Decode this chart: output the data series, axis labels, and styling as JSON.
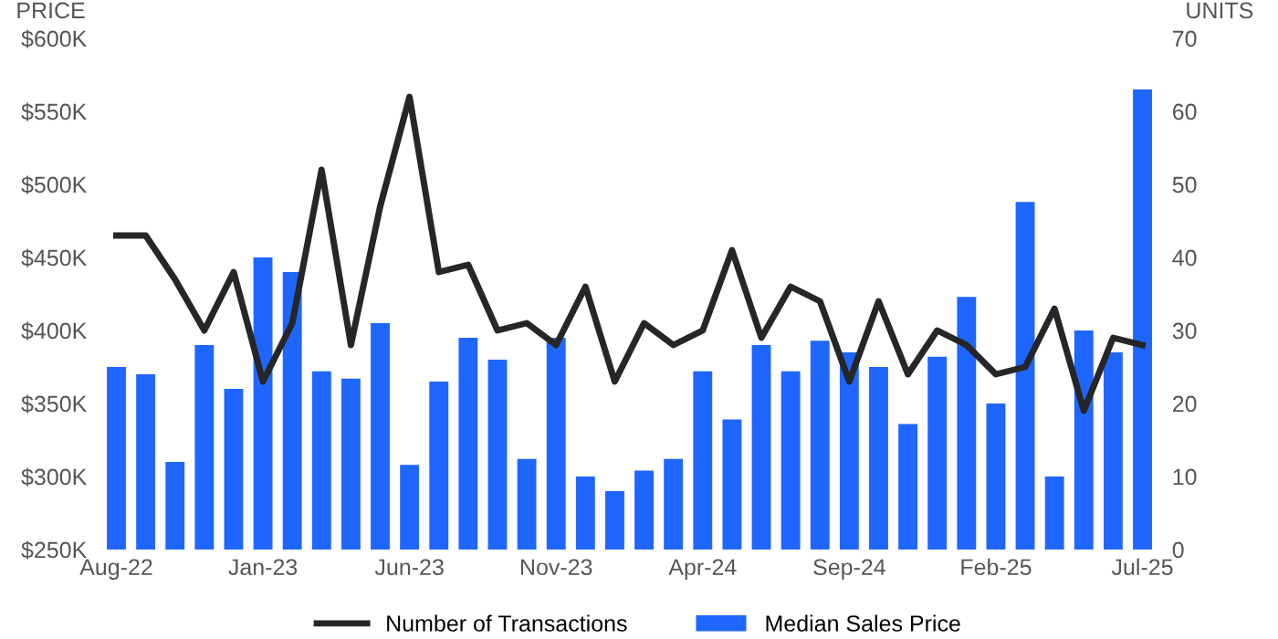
{
  "chart_data": {
    "type": "bar",
    "categories": [
      "Aug-22",
      null,
      null,
      null,
      null,
      "Jan-23",
      null,
      null,
      null,
      null,
      "Jun-23",
      null,
      null,
      null,
      null,
      "Nov-23",
      null,
      null,
      null,
      null,
      "Apr-24",
      null,
      null,
      null,
      null,
      "Sep-24",
      null,
      null,
      null,
      null,
      "Feb-25",
      null,
      null,
      null,
      null,
      "Jul-25"
    ],
    "series": [
      {
        "name": "Number of Transactions",
        "type": "line",
        "axis": "y2",
        "color": "#262626",
        "values": [
          43,
          43,
          37,
          30,
          38,
          23,
          31,
          52,
          28,
          47,
          62,
          38,
          39,
          30,
          31,
          28,
          36,
          23,
          31,
          28,
          30,
          41,
          29,
          36,
          34,
          23,
          34,
          24,
          30,
          28,
          24,
          25,
          33,
          19,
          29,
          28
        ]
      },
      {
        "name": "Median Sales Price",
        "axis": "y",
        "color": "#1f66ff",
        "values": [
          375,
          370,
          310,
          390,
          360,
          450,
          440,
          372,
          367,
          405,
          308,
          365,
          395,
          380,
          312,
          395,
          300,
          290,
          304,
          312,
          372,
          339,
          390,
          372,
          393,
          385,
          375,
          336,
          382,
          423,
          350,
          488,
          300,
          400,
          385,
          565
        ]
      }
    ],
    "ylabel": "PRICE",
    "y2label": "UNITS",
    "ylim": [
      250,
      600
    ],
    "yticks": [
      {
        "value": 250,
        "label": "$250K"
      },
      {
        "value": 300,
        "label": "$300K"
      },
      {
        "value": 350,
        "label": "$350K"
      },
      {
        "value": 400,
        "label": "$400K"
      },
      {
        "value": 450,
        "label": "$450K"
      },
      {
        "value": 500,
        "label": "$500K"
      },
      {
        "value": 550,
        "label": "$550K"
      },
      {
        "value": 600,
        "label": "$600K"
      }
    ],
    "y2lim": [
      0,
      70
    ],
    "y2ticks": [
      0,
      10,
      20,
      30,
      40,
      50,
      60,
      70
    ],
    "legend": "bottom",
    "grid": false,
    "marker": "none",
    "line_style": "solid"
  }
}
